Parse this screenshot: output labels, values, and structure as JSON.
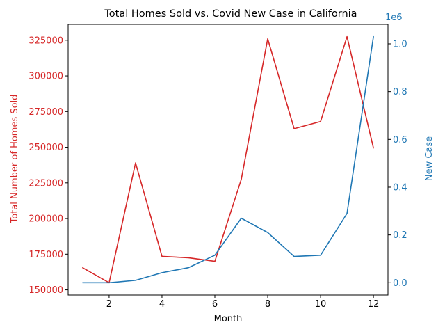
{
  "chart_data": {
    "type": "line",
    "title": "Total Homes Sold vs. Covid New Case in California",
    "xlabel": "Month",
    "x": [
      1,
      2,
      3,
      4,
      5,
      6,
      7,
      8,
      9,
      10,
      11,
      12
    ],
    "xlim": [
      0.45,
      12.55
    ],
    "x_ticks": [
      "2",
      "4",
      "6",
      "8",
      "10",
      "12"
    ],
    "x_tick_values": [
      2,
      4,
      6,
      8,
      10,
      12
    ],
    "grid": false,
    "colors": {
      "left": "#d62728",
      "right": "#1f77b4",
      "axis": "#000000"
    },
    "series": [
      {
        "axis": "left",
        "values": [
          165500,
          155000,
          239000,
          173500,
          172500,
          170000,
          227500,
          326000,
          263000,
          268000,
          327500,
          249500
        ]
      },
      {
        "axis": "right",
        "values": [
          0,
          0,
          0.01,
          0.042,
          0.063,
          0.115,
          0.27,
          0.21,
          0.11,
          0.115,
          0.29,
          1.03
        ]
      }
    ],
    "y_left": {
      "label": "Total Number of Homes Sold",
      "ylim": [
        146375,
        336125
      ],
      "tick_values": [
        150000,
        175000,
        200000,
        225000,
        250000,
        275000,
        300000,
        325000
      ],
      "tick_labels": [
        "150000",
        "175000",
        "200000",
        "225000",
        "250000",
        "275000",
        "300000",
        "325000"
      ]
    },
    "y_right": {
      "label": "New Case",
      "offset_text": "1e6",
      "ylim": [
        -0.0515,
        1.0815
      ],
      "tick_values": [
        0.0,
        0.2,
        0.4,
        0.6,
        0.8,
        1.0
      ],
      "tick_labels": [
        "0.0",
        "0.2",
        "0.4",
        "0.6",
        "0.8",
        "1.0"
      ]
    }
  }
}
